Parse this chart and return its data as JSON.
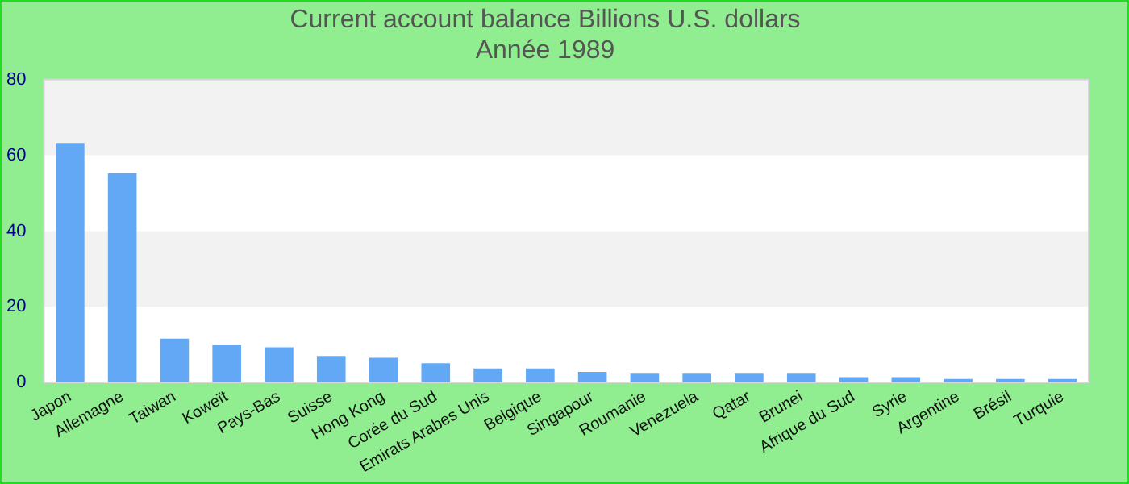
{
  "chart_data": {
    "type": "bar",
    "title": "Current account balance Billions U.S. dollars",
    "subtitle": "Année 1989",
    "categories": [
      "Japon",
      "Allemagne",
      "Taiwan",
      "Koweït",
      "Pays-Bas",
      "Suisse",
      "Hong Kong",
      "Corée du Sud",
      "Emirats Arabes Unis",
      "Belgique",
      "Singapour",
      "Roumanie",
      "Venezuela",
      "Qatar",
      "Brunei",
      "Afrique du Sud",
      "Syrie",
      "Argentine",
      "Brésil",
      "Turquie"
    ],
    "values": [
      63.3,
      55.3,
      11.6,
      9.8,
      9.3,
      7.0,
      6.5,
      5.1,
      3.7,
      3.7,
      2.8,
      2.3,
      2.3,
      2.3,
      2.3,
      1.4,
      1.4,
      0.9,
      0.9,
      0.9
    ],
    "color": "#63a8f5",
    "ylim": [
      0,
      80
    ],
    "yticks": [
      0,
      20,
      40,
      60,
      80
    ],
    "bands": [
      {
        "axis": "y",
        "from": 60,
        "to": 80,
        "color": "#f2f2f2"
      },
      {
        "axis": "y",
        "from": 20,
        "to": 40,
        "color": "#f2f2f2"
      }
    ],
    "legend": false
  }
}
